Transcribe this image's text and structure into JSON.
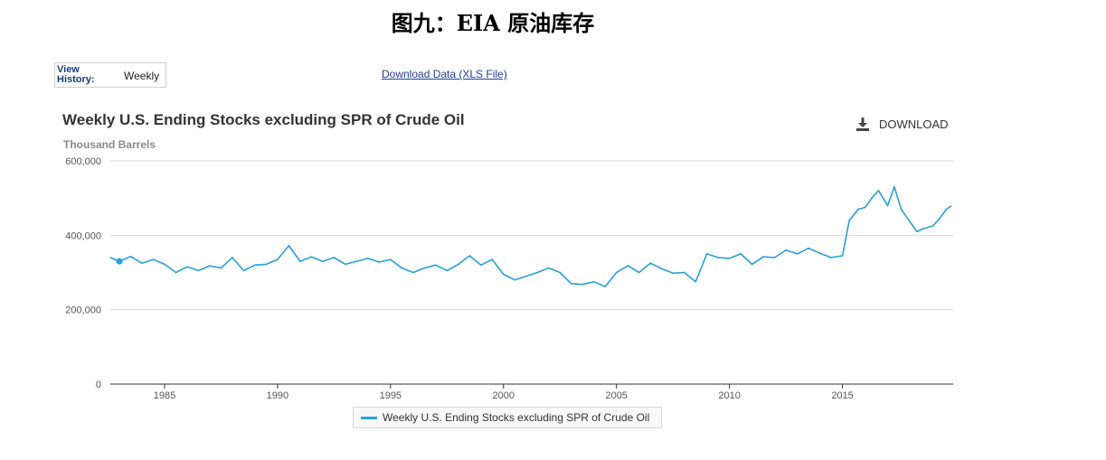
{
  "figure_title": "图九：EIA 原油库存",
  "view_history": {
    "label": "View\nHistory:",
    "value": "Weekly"
  },
  "download_data_link": "Download Data (XLS File)",
  "download_button": {
    "label": "DOWNLOAD",
    "icon": "download-icon"
  },
  "colors": {
    "series": "#2a9fd6",
    "grid": "#d9d9d9",
    "axis": "#333333"
  },
  "chart_data": {
    "type": "line",
    "title": "Weekly U.S. Ending Stocks excluding SPR of Crude Oil",
    "subtitle": "Thousand Barrels",
    "xlabel": "",
    "ylabel": "",
    "xlim": [
      1982.6,
      2019.9
    ],
    "ylim": [
      0,
      600000
    ],
    "y_ticks": [
      0,
      200000,
      400000,
      600000
    ],
    "y_tick_labels": [
      "0",
      "200,000",
      "400,000",
      "600,000"
    ],
    "x_ticks": [
      1985,
      1990,
      1995,
      2000,
      2005,
      2010,
      2015
    ],
    "x_tick_labels": [
      "1985",
      "1990",
      "1995",
      "2000",
      "2005",
      "2010",
      "2015"
    ],
    "grid": true,
    "legend": "bottom-center",
    "series": [
      {
        "name": "Weekly U.S. Ending Stocks excluding SPR of Crude Oil",
        "x": [
          1982.6,
          1983.0,
          1983.5,
          1984.0,
          1984.5,
          1985.0,
          1985.5,
          1986.0,
          1986.5,
          1987.0,
          1987.5,
          1988.0,
          1988.5,
          1989.0,
          1989.5,
          1990.0,
          1990.5,
          1991.0,
          1991.5,
          1992.0,
          1992.5,
          1993.0,
          1993.5,
          1994.0,
          1994.5,
          1995.0,
          1995.5,
          1996.0,
          1996.5,
          1997.0,
          1997.5,
          1998.0,
          1998.5,
          1999.0,
          1999.5,
          2000.0,
          2000.5,
          2001.0,
          2001.5,
          2002.0,
          2002.5,
          2003.0,
          2003.5,
          2004.0,
          2004.5,
          2005.0,
          2005.5,
          2006.0,
          2006.5,
          2007.0,
          2007.5,
          2008.0,
          2008.5,
          2009.0,
          2009.5,
          2010.0,
          2010.5,
          2011.0,
          2011.5,
          2012.0,
          2012.5,
          2013.0,
          2013.5,
          2014.0,
          2014.5,
          2015.0,
          2015.3,
          2015.7,
          2016.0,
          2016.3,
          2016.6,
          2017.0,
          2017.3,
          2017.6,
          2018.0,
          2018.3,
          2018.6,
          2019.0,
          2019.3,
          2019.6,
          2019.8
        ],
        "values": [
          340000,
          330000,
          343000,
          325000,
          335000,
          322000,
          300000,
          315000,
          305000,
          318000,
          312000,
          340000,
          305000,
          320000,
          322000,
          335000,
          372000,
          330000,
          342000,
          330000,
          340000,
          322000,
          330000,
          338000,
          328000,
          335000,
          312000,
          300000,
          312000,
          320000,
          305000,
          322000,
          345000,
          320000,
          335000,
          295000,
          280000,
          290000,
          300000,
          312000,
          300000,
          270000,
          268000,
          275000,
          262000,
          300000,
          318000,
          300000,
          325000,
          310000,
          298000,
          300000,
          275000,
          350000,
          340000,
          338000,
          350000,
          322000,
          342000,
          340000,
          360000,
          350000,
          365000,
          352000,
          340000,
          345000,
          440000,
          470000,
          475000,
          500000,
          520000,
          480000,
          530000,
          470000,
          435000,
          410000,
          418000,
          425000,
          445000,
          470000,
          478000
        ]
      }
    ]
  }
}
